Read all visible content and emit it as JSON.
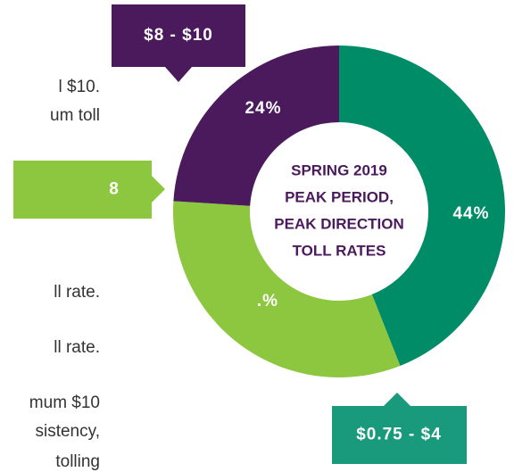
{
  "chart_data": {
    "type": "pie",
    "center_text": [
      "SPRING 2019",
      "PEAK PERIOD,",
      "PEAK DIRECTION",
      "TOLL RATES"
    ],
    "categories": [
      "$0.75 - $4",
      "8",
      "$8 - $10"
    ],
    "values": [
      44,
      32,
      24
    ],
    "value_labels": [
      "44%",
      ".%",
      "24%"
    ],
    "colors": [
      "#008c67",
      "#8dc63f",
      "#4b1a5c"
    ],
    "callout_colors": [
      "#1a9a7c",
      "#8dc63f",
      "#4b1a5c"
    ]
  },
  "body_text": [
    "l $10.",
    "um toll",
    "ll rate.",
    "ll rate.",
    "mum $10",
    "sistency,",
    "tolling"
  ]
}
